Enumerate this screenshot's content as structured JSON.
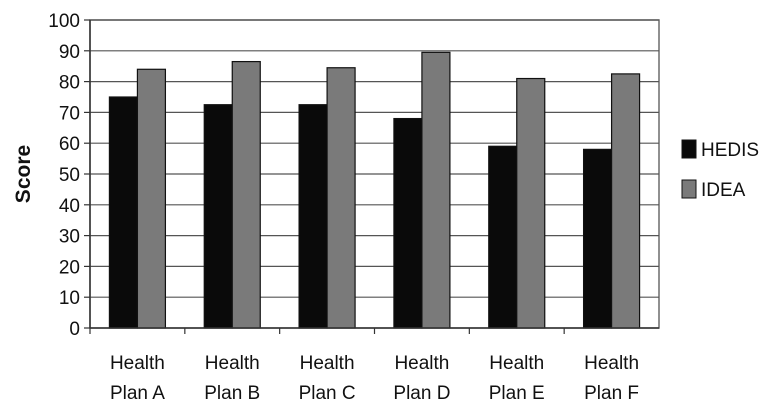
{
  "chart_data": {
    "type": "bar",
    "title": "",
    "xlabel": "",
    "ylabel": "Score",
    "ylim": [
      0,
      100
    ],
    "yticks": [
      0,
      10,
      20,
      30,
      40,
      50,
      60,
      70,
      80,
      90,
      100
    ],
    "categories": [
      [
        "Health",
        "Plan A"
      ],
      [
        "Health",
        "Plan B"
      ],
      [
        "Health",
        "Plan C"
      ],
      [
        "Health",
        "Plan D"
      ],
      [
        "Health",
        "Plan E"
      ],
      [
        "Health",
        "Plan F"
      ]
    ],
    "series": [
      {
        "name": "HEDIS",
        "color": "#0a0a0a",
        "values": [
          75,
          72.5,
          72.5,
          68,
          59,
          58
        ]
      },
      {
        "name": "IDEA",
        "color": "#7a7a7a",
        "values": [
          84,
          86.5,
          84.5,
          89.5,
          81,
          82.5
        ]
      }
    ],
    "grid": true,
    "legend_position": "right"
  }
}
